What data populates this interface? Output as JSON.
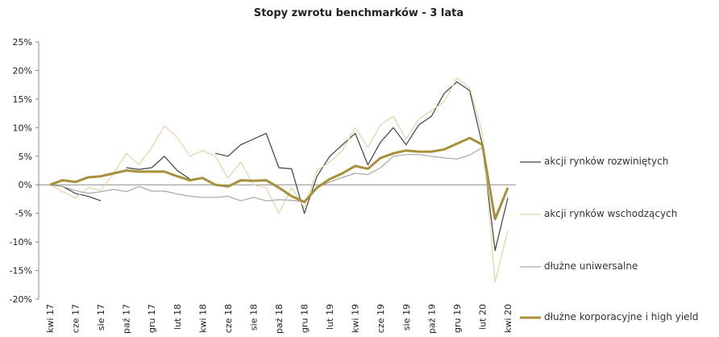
{
  "chart_data": {
    "type": "line",
    "title": "Stopy zwrotu benchmarków - 3 lata",
    "categories": [
      "kwi 17",
      null,
      "cze 17",
      null,
      "sie 17",
      null,
      "paź 17",
      null,
      "gru 17",
      null,
      "lut 18",
      null,
      "kwi 18",
      null,
      "cze 18",
      null,
      "sie 18",
      null,
      "paź 18",
      null,
      "gru 18",
      null,
      "lut 19",
      null,
      "kwi 19",
      null,
      "cze 19",
      null,
      "sie 19",
      null,
      "paź 19",
      null,
      "gru 19",
      null,
      "lut 20",
      null,
      "kwi 20"
    ],
    "ylim": [
      -20,
      25
    ],
    "yticks": [
      {
        "value": -20,
        "label": "-20%"
      },
      {
        "value": -15,
        "label": "-15%"
      },
      {
        "value": -10,
        "label": "-10%"
      },
      {
        "value": -5,
        "label": "-5%"
      },
      {
        "value": 0,
        "label": "0%"
      },
      {
        "value": 5,
        "label": "5%"
      },
      {
        "value": 10,
        "label": "10%"
      },
      {
        "value": 15,
        "label": "15%"
      },
      {
        "value": 20,
        "label": "20%"
      },
      {
        "value": 25,
        "label": "25%"
      }
    ],
    "series": [
      {
        "name": "akcji rynków rozwiniętych",
        "color": "#404040",
        "width": 1.2,
        "values": [
          0,
          -0.3,
          -1.5,
          -2,
          -2.8,
          null,
          3,
          2.7,
          3,
          5,
          2.5,
          1,
          null,
          5.5,
          5,
          7,
          8,
          9,
          3,
          2.8,
          -5,
          1.5,
          5,
          7,
          9,
          3.5,
          7.5,
          10,
          7,
          10.5,
          12,
          16,
          18,
          16.5,
          7,
          -11.5,
          -2.3
        ]
      },
      {
        "name": "akcji rynków wschodzących",
        "color": "#e6d3a3",
        "width": 1.2,
        "values": [
          0,
          -1.2,
          -2.3,
          -0.5,
          -1,
          2,
          5.5,
          3.5,
          6.5,
          10.3,
          8.3,
          5,
          6,
          5,
          1.2,
          4,
          0,
          -0.5,
          -5,
          -0.5,
          -4,
          2.5,
          4,
          6,
          10,
          6.5,
          10.5,
          12,
          8,
          11.5,
          13,
          14.5,
          18.7,
          17,
          9,
          -17,
          -8
        ]
      },
      {
        "name": "dłużne uniwersalne",
        "color": "#a6a6a6",
        "width": 1.2,
        "values": [
          0,
          -0.3,
          -1,
          -1.5,
          -1.2,
          -0.8,
          -1.2,
          -0.3,
          -1.1,
          -1.1,
          -1.6,
          -2,
          -2.2,
          -2.2,
          -2,
          -2.8,
          -2.2,
          -2.8,
          -2.6,
          -2.7,
          -3,
          -0.5,
          0.5,
          1.3,
          2,
          1.8,
          3,
          5,
          5.3,
          5.3,
          5,
          4.7,
          4.5,
          5.2,
          6.5,
          -5.5,
          -0.8
        ]
      },
      {
        "name": "dłużne korporacyjne i high yield",
        "color": "#a8903a",
        "width": 3,
        "values": [
          0,
          0.8,
          0.5,
          1.3,
          1.5,
          2,
          2.5,
          2.3,
          2.3,
          2.3,
          1.5,
          0.8,
          1.2,
          0,
          -0.3,
          0.8,
          0.7,
          0.8,
          -0.5,
          -2,
          -3,
          -0.5,
          1,
          2,
          3.3,
          2.8,
          4.7,
          5.5,
          6,
          5.8,
          5.8,
          6.2,
          7.2,
          8.2,
          7,
          -6,
          -0.5
        ]
      }
    ]
  }
}
